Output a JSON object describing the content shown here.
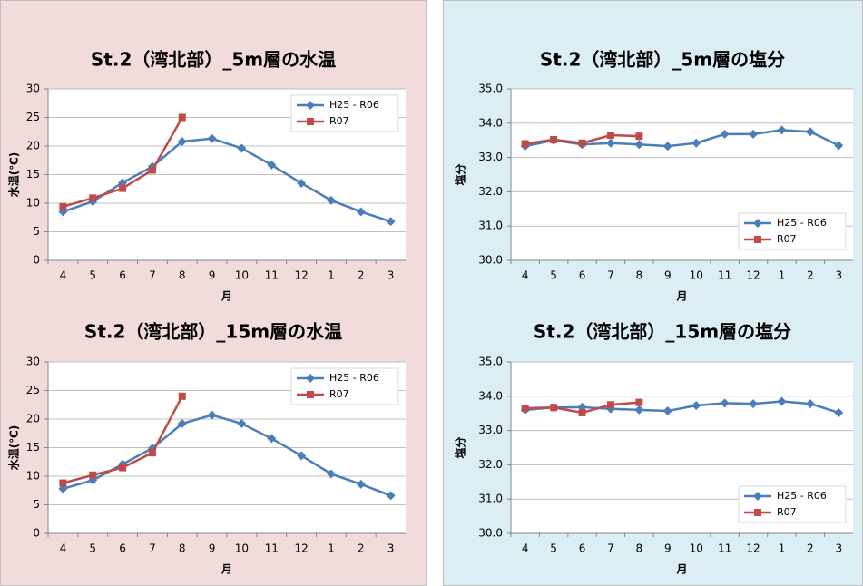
{
  "chart_data": [
    {
      "type": "line",
      "title": "St.2（湾北部）_5m層の水温",
      "y_label": "水温(℃)",
      "x_label": "月",
      "categories": [
        "4",
        "5",
        "6",
        "7",
        "8",
        "9",
        "10",
        "11",
        "12",
        "1",
        "2",
        "3"
      ],
      "series": [
        {
          "name": "H25 - R06",
          "color": "#4a7ebb",
          "marker": "diamond",
          "values": [
            8.5,
            10.3,
            13.6,
            16.4,
            20.8,
            21.3,
            19.6,
            16.7,
            13.5,
            10.5,
            8.5,
            6.8
          ]
        },
        {
          "name": "R07",
          "color": "#be4b48",
          "marker": "square",
          "values": [
            9.4,
            10.9,
            12.6,
            15.8,
            25.0,
            null,
            null,
            null,
            null,
            null,
            null,
            null
          ]
        }
      ],
      "ylim": [
        0,
        30
      ],
      "yticks": [
        0,
        5,
        10,
        15,
        20,
        25,
        30
      ],
      "grid": true,
      "legend": "upper right"
    },
    {
      "type": "line",
      "title": "St.2（湾北部）_15m層の水温",
      "y_label": "水温(℃)",
      "x_label": "月",
      "categories": [
        "4",
        "5",
        "6",
        "7",
        "8",
        "9",
        "10",
        "11",
        "12",
        "1",
        "2",
        "3"
      ],
      "series": [
        {
          "name": "H25 - R06",
          "color": "#4a7ebb",
          "marker": "diamond",
          "values": [
            7.8,
            9.3,
            12.1,
            14.9,
            19.2,
            20.7,
            19.2,
            16.6,
            13.6,
            10.4,
            8.6,
            6.6
          ]
        },
        {
          "name": "R07",
          "color": "#be4b48",
          "marker": "square",
          "values": [
            8.8,
            10.2,
            11.5,
            14.1,
            24.0,
            null,
            null,
            null,
            null,
            null,
            null,
            null
          ]
        }
      ],
      "ylim": [
        0,
        30
      ],
      "yticks": [
        0,
        5,
        10,
        15,
        20,
        25,
        30
      ],
      "grid": true,
      "legend": "upper right"
    },
    {
      "type": "line",
      "title": "St.2（湾北部）_5m層の塩分",
      "y_label": "塩分",
      "x_label": "月",
      "categories": [
        "4",
        "5",
        "6",
        "7",
        "8",
        "9",
        "10",
        "11",
        "12",
        "1",
        "2",
        "3"
      ],
      "series": [
        {
          "name": "H25 - R06",
          "color": "#4a7ebb",
          "marker": "diamond",
          "values": [
            33.33,
            33.5,
            33.38,
            33.42,
            33.38,
            33.33,
            33.42,
            33.68,
            33.68,
            33.8,
            33.75,
            33.35
          ]
        },
        {
          "name": "R07",
          "color": "#be4b48",
          "marker": "square",
          "values": [
            33.4,
            33.52,
            33.42,
            33.65,
            33.62,
            null,
            null,
            null,
            null,
            null,
            null,
            null
          ]
        }
      ],
      "ylim": [
        30,
        35
      ],
      "yticks": [
        {
          "value": 30,
          "label": "30.0"
        },
        {
          "value": 31,
          "label": "31.0"
        },
        {
          "value": 32,
          "label": "32.0"
        },
        {
          "value": 33,
          "label": "33.0"
        },
        {
          "value": 34,
          "label": "34.0"
        },
        {
          "value": 35,
          "label": "35.0"
        }
      ],
      "grid": true,
      "legend": "lower right"
    },
    {
      "type": "line",
      "title": "St.2（湾北部）_15m層の塩分",
      "y_label": "塩分",
      "x_label": "月",
      "categories": [
        "4",
        "5",
        "6",
        "7",
        "8",
        "9",
        "10",
        "11",
        "12",
        "1",
        "2",
        "3"
      ],
      "series": [
        {
          "name": "H25 - R06",
          "color": "#4a7ebb",
          "marker": "diamond",
          "values": [
            33.6,
            33.67,
            33.68,
            33.63,
            33.6,
            33.57,
            33.73,
            33.8,
            33.78,
            33.85,
            33.78,
            33.52
          ]
        },
        {
          "name": "R07",
          "color": "#be4b48",
          "marker": "square",
          "values": [
            33.65,
            33.67,
            33.52,
            33.75,
            33.82,
            null,
            null,
            null,
            null,
            null,
            null,
            null
          ]
        }
      ],
      "ylim": [
        30,
        35
      ],
      "yticks": [
        {
          "value": 30,
          "label": "30.0"
        },
        {
          "value": 31,
          "label": "31.0"
        },
        {
          "value": 32,
          "label": "32.0"
        },
        {
          "value": 33,
          "label": "33.0"
        },
        {
          "value": 34,
          "label": "34.0"
        },
        {
          "value": 35,
          "label": "35.0"
        }
      ],
      "grid": true,
      "legend": "lower right"
    }
  ]
}
